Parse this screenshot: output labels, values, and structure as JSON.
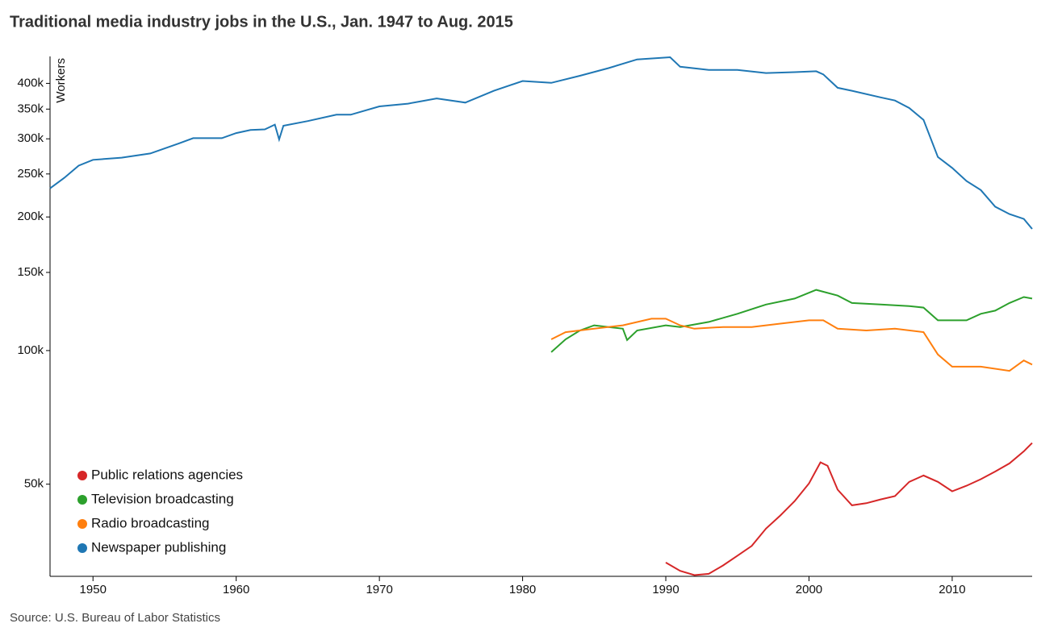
{
  "chart_data": {
    "type": "line",
    "title": "Traditional media industry jobs in the U.S., Jan. 1947 to Aug. 2015",
    "y_label": "Workers",
    "source": "Source: U.S. Bureau of Labor Statistics",
    "log_y": true,
    "legend": "lower left",
    "xlim": [
      1947,
      2015.583
    ],
    "xticks": [
      1950,
      1960,
      1970,
      1980,
      1990,
      2000,
      2010
    ],
    "ylim": [
      31000,
      460000
    ],
    "yticks": [
      {
        "value": 50000,
        "label": "50k"
      },
      {
        "value": 100000,
        "label": "100k"
      },
      {
        "value": 150000,
        "label": "150k"
      },
      {
        "value": 200000,
        "label": "200k"
      },
      {
        "value": 250000,
        "label": "250k"
      },
      {
        "value": 300000,
        "label": "300k"
      },
      {
        "value": 350000,
        "label": "350k"
      },
      {
        "value": 400000,
        "label": "400k"
      }
    ],
    "series": [
      {
        "name": "Public relations agencies",
        "color": "#d62728",
        "x": [
          1990,
          1991,
          1992,
          1993,
          1994,
          1995,
          1996,
          1997,
          1998,
          1999,
          2000,
          2000.8,
          2001.3,
          2002,
          2003,
          2004,
          2005,
          2006,
          2007,
          2008,
          2009,
          2010,
          2011,
          2012,
          2013,
          2014,
          2015,
          2015.583
        ],
        "values": [
          33300,
          31900,
          31200,
          31400,
          32800,
          34500,
          36300,
          39700,
          42500,
          45800,
          50200,
          56000,
          55000,
          48600,
          44800,
          45300,
          46200,
          47000,
          50600,
          52300,
          50600,
          48200,
          49600,
          51300,
          53400,
          55700,
          59300,
          61900
        ]
      },
      {
        "name": "Television broadcasting",
        "color": "#2ca02c",
        "x": [
          1982,
          1983,
          1984,
          1985,
          1986,
          1987,
          1987.3,
          1988,
          1990,
          1991,
          1993,
          1995,
          1997,
          1999,
          2000.5,
          2002,
          2003,
          2005,
          2007,
          2008,
          2009,
          2010,
          2011,
          2012,
          2013,
          2014,
          2015,
          2015.583
        ],
        "values": [
          99200,
          106000,
          111000,
          114000,
          113000,
          112000,
          105600,
          111000,
          114000,
          113000,
          116000,
          121000,
          127000,
          131000,
          137000,
          133000,
          128000,
          127000,
          126000,
          125000,
          117000,
          117000,
          117000,
          121000,
          123000,
          128000,
          132000,
          131000
        ]
      },
      {
        "name": "Radio broadcasting",
        "color": "#ff7f0e",
        "x": [
          1982,
          1983,
          1985,
          1987,
          1989,
          1990,
          1991,
          1992,
          1994,
          1996,
          1998,
          2000,
          2001,
          2002,
          2004,
          2006,
          2008,
          2009,
          2010,
          2012,
          2014,
          2015,
          2015.583
        ],
        "values": [
          106000,
          110000,
          112000,
          114000,
          118000,
          118000,
          114000,
          112000,
          113000,
          113000,
          115000,
          117000,
          117000,
          112000,
          111000,
          112000,
          110000,
          98000,
          92000,
          92000,
          90000,
          95000,
          93000
        ]
      },
      {
        "name": "Newspaper publishing",
        "color": "#1f77b4",
        "x": [
          1947,
          1948,
          1949,
          1950,
          1952,
          1954,
          1956,
          1957,
          1959,
          1960,
          1961,
          1962,
          1962.7,
          1963,
          1963.3,
          1965,
          1967,
          1968,
          1970,
          1972,
          1974,
          1976,
          1978,
          1980,
          1982,
          1984,
          1986,
          1988,
          1990.3,
          1991,
          1993,
          1995,
          1997,
          1999,
          2000.5,
          2001,
          2002,
          2003,
          2005,
          2006,
          2007,
          2008,
          2009,
          2010,
          2011,
          2012,
          2013,
          2014,
          2015,
          2015.583
        ],
        "values": [
          232000,
          245000,
          261000,
          269000,
          272000,
          278000,
          293000,
          301000,
          301000,
          309000,
          314000,
          315000,
          323000,
          299000,
          321000,
          329000,
          340000,
          340000,
          355000,
          360000,
          370000,
          362000,
          385000,
          405000,
          401000,
          416000,
          433000,
          453000,
          458000,
          436000,
          429000,
          429000,
          422000,
          424000,
          426000,
          419000,
          391000,
          385000,
          372000,
          366000,
          352000,
          331000,
          273000,
          258000,
          241000,
          230000,
          211000,
          203000,
          198000,
          188000
        ]
      }
    ]
  }
}
